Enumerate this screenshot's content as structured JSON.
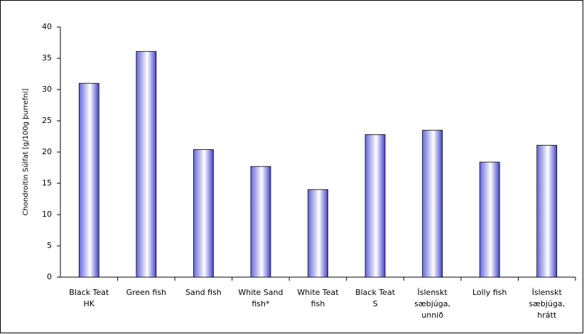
{
  "chart_data": {
    "type": "bar",
    "y_label": "Chondroitin Súlfat [g/100g þurrefni]",
    "categories": [
      "Black Teat HK",
      "Green fish",
      "Sand fish",
      "White Sand fish*",
      "White Teat fish",
      "Black Teat S",
      "Íslenskt sæbjúga, unnið",
      "Lolly fish",
      "Íslenskt sæbjúga, hrátt"
    ],
    "values": [
      31,
      36.1,
      20.4,
      17.7,
      14,
      22.8,
      23.5,
      18.4,
      21.1
    ],
    "color": "#3333cc",
    "ylim": [
      0,
      40
    ],
    "yticks": [
      0,
      5,
      10,
      15,
      20,
      25,
      30,
      35,
      40
    ],
    "grid": false
  }
}
